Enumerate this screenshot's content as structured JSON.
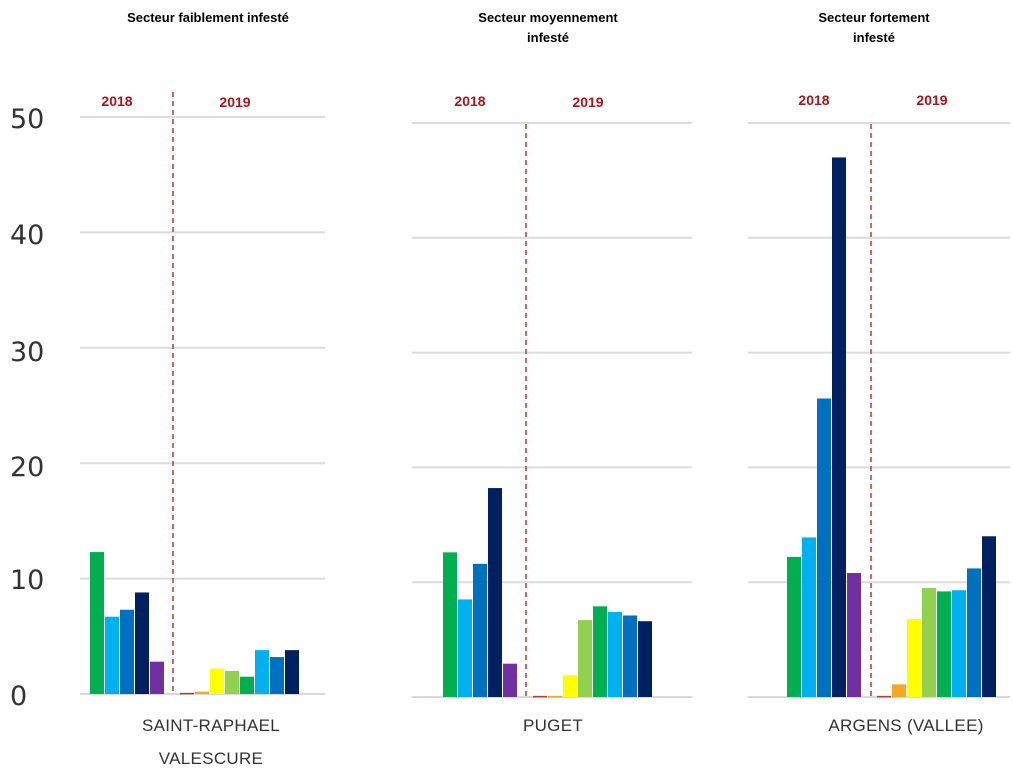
{
  "chart_data": {
    "type": "bar",
    "y_ticks": [
      "0",
      "10",
      "20",
      "30",
      "40",
      "50"
    ],
    "ylim": [
      0,
      50
    ],
    "grid": true,
    "legend": "none",
    "series_colors": [
      "#c0392b",
      "#f5a623",
      "#ffff00",
      "#92d050",
      "#00b050",
      "#00b0f0",
      "#0070c0",
      "#002060",
      "#7030a0"
    ],
    "panels": [
      {
        "title": "Secteur faiblement infesté",
        "category": "SAINT-RAPHAEL VALESCURE",
        "year_2018": "2018",
        "year_2019": "2019",
        "bars_2018": [
          {
            "color": "#00b050",
            "value": 12.3
          },
          {
            "color": "#00b0f0",
            "value": 6.7
          },
          {
            "color": "#0070c0",
            "value": 7.3
          },
          {
            "color": "#002060",
            "value": 8.8
          },
          {
            "color": "#7030a0",
            "value": 2.8
          }
        ],
        "bars_2019": [
          {
            "color": "#c0392b",
            "value": 0.1
          },
          {
            "color": "#f5a623",
            "value": 0.2
          },
          {
            "color": "#ffff00",
            "value": 2.2
          },
          {
            "color": "#92d050",
            "value": 2.0
          },
          {
            "color": "#00b050",
            "value": 1.5
          },
          {
            "color": "#00b0f0",
            "value": 3.8
          },
          {
            "color": "#0070c0",
            "value": 3.2
          },
          {
            "color": "#002060",
            "value": 3.8
          }
        ]
      },
      {
        "title": "Secteur moyennement infesté",
        "category": "PUGET",
        "year_2018": "2018",
        "year_2019": "2019",
        "bars_2018": [
          {
            "color": "#00b050",
            "value": 12.6
          },
          {
            "color": "#00b0f0",
            "value": 8.5
          },
          {
            "color": "#0070c0",
            "value": 11.6
          },
          {
            "color": "#002060",
            "value": 18.2
          },
          {
            "color": "#7030a0",
            "value": 2.9
          }
        ],
        "bars_2019": [
          {
            "color": "#c0392b",
            "value": 0.1
          },
          {
            "color": "#f5a623",
            "value": 0.1
          },
          {
            "color": "#ffff00",
            "value": 1.9
          },
          {
            "color": "#92d050",
            "value": 6.7
          },
          {
            "color": "#00b050",
            "value": 7.9
          },
          {
            "color": "#00b0f0",
            "value": 7.4
          },
          {
            "color": "#0070c0",
            "value": 7.1
          },
          {
            "color": "#002060",
            "value": 6.6
          }
        ]
      },
      {
        "title": "Secteur fortement infesté",
        "category": "ARGENS (VALLEE)",
        "year_2018": "2018",
        "year_2019": "2019",
        "bars_2018": [
          {
            "color": "#00b050",
            "value": 12.2
          },
          {
            "color": "#00b0f0",
            "value": 13.9
          },
          {
            "color": "#0070c0",
            "value": 26.0
          },
          {
            "color": "#002060",
            "value": 47.0
          },
          {
            "color": "#7030a0",
            "value": 10.8
          }
        ],
        "bars_2019": [
          {
            "color": "#c0392b",
            "value": 0.1
          },
          {
            "color": "#f5a623",
            "value": 1.1
          },
          {
            "color": "#ffff00",
            "value": 6.8
          },
          {
            "color": "#92d050",
            "value": 9.5
          },
          {
            "color": "#00b050",
            "value": 9.2
          },
          {
            "color": "#00b0f0",
            "value": 9.3
          },
          {
            "color": "#0070c0",
            "value": 11.2
          },
          {
            "color": "#002060",
            "value": 14.0
          }
        ]
      }
    ]
  }
}
